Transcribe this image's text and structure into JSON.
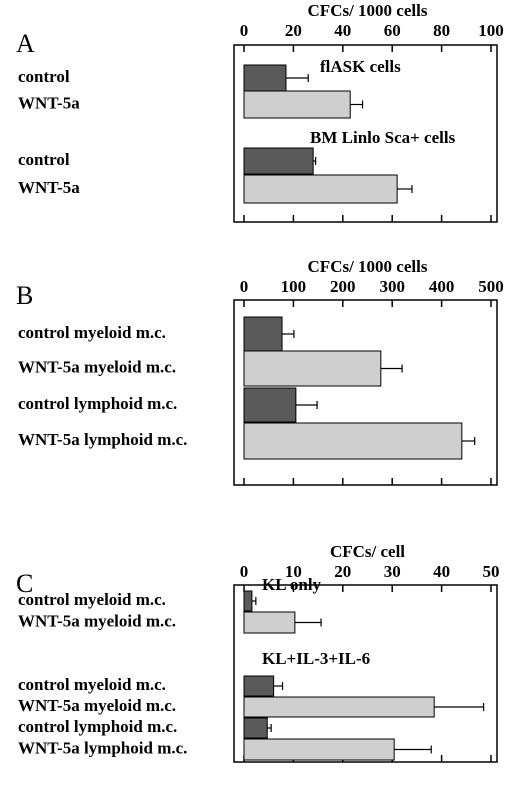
{
  "chart_data": [
    {
      "type": "bar",
      "panel_label": "A",
      "xlabel": "CFCs/ 1000 cells",
      "xlim": [
        0,
        100
      ],
      "xticks": [
        0,
        20,
        40,
        60,
        80,
        100
      ],
      "groups": [
        {
          "label": "flASK cells",
          "categories": [
            "control",
            "WNT-5a"
          ],
          "values": [
            17,
            43
          ],
          "errors": [
            9,
            5
          ],
          "colors": [
            "#5a5a5a",
            "#cfcfcf"
          ]
        },
        {
          "label": "BM Linlo Sca+ cells",
          "categories": [
            "control",
            "WNT-5a"
          ],
          "values": [
            28,
            62
          ],
          "errors": [
            1,
            6
          ],
          "colors": [
            "#5a5a5a",
            "#cfcfcf"
          ]
        }
      ]
    },
    {
      "type": "bar",
      "panel_label": "B",
      "xlabel": "CFCs/ 1000 cells",
      "xlim": [
        0,
        500
      ],
      "xticks": [
        0,
        100,
        200,
        300,
        400,
        500
      ],
      "groups": [
        {
          "categories": [
            "control myeloid m.c.",
            "WNT-5a myeloid m.c.",
            "control lymphoid m.c.",
            "WNT-5a lymphoid m.c."
          ],
          "values": [
            77,
            277,
            105,
            441
          ],
          "errors": [
            24,
            43,
            43,
            26
          ],
          "colors": [
            "#5a5a5a",
            "#cfcfcf",
            "#5a5a5a",
            "#cfcfcf"
          ]
        }
      ]
    },
    {
      "type": "bar",
      "panel_label": "C",
      "xlabel": "CFCs/ cell",
      "xlim": [
        0,
        50
      ],
      "xticks": [
        0,
        10,
        20,
        30,
        40,
        50
      ],
      "groups": [
        {
          "label": "KL only",
          "categories": [
            "control myeloid m.c.",
            "WNT-5a myeloid m.c."
          ],
          "values": [
            1.6,
            10.3
          ],
          "errors": [
            0.8,
            5.3
          ],
          "colors": [
            "#5a5a5a",
            "#cfcfcf"
          ]
        },
        {
          "label": "KL+IL-3+IL-6",
          "categories": [
            "control myeloid m.c.",
            "WNT-5a myeloid m.c.",
            "control lymphoid m.c.",
            "WNT-5a lymphoid m.c."
          ],
          "values": [
            6,
            38.5,
            4.7,
            30.4
          ],
          "errors": [
            1.8,
            10,
            0.8,
            7.5
          ],
          "colors": [
            "#5a5a5a",
            "#cfcfcf",
            "#5a5a5a",
            "#cfcfcf"
          ]
        }
      ]
    }
  ]
}
